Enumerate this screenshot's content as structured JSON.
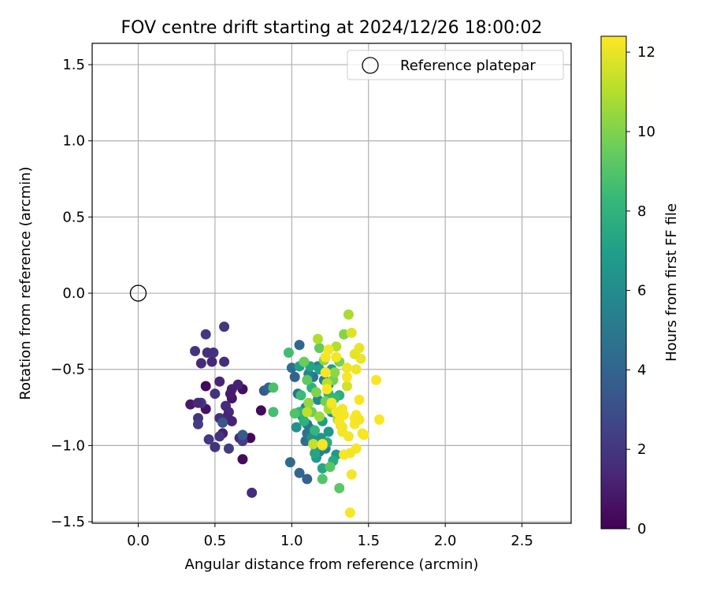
{
  "chart_data": {
    "type": "scatter",
    "title": "FOV centre drift starting at 2024/12/26 18:00:02",
    "xlabel": "Angular distance from reference (arcmin)",
    "ylabel": "Rotation from reference (arcmin)",
    "xlim": [
      -0.3,
      2.82
    ],
    "ylim": [
      -1.51,
      1.64
    ],
    "xticks": [
      0.0,
      0.5,
      1.0,
      1.5,
      2.0,
      2.5
    ],
    "xtick_labels": [
      "0.0",
      "0.5",
      "1.0",
      "1.5",
      "2.0",
      "2.5"
    ],
    "yticks": [
      -1.5,
      -1.0,
      -0.5,
      0.0,
      0.5,
      1.0,
      1.5
    ],
    "ytick_labels": [
      "−1.5",
      "−1.0",
      "−0.5",
      "0.0",
      "0.5",
      "1.0",
      "1.5"
    ],
    "grid": true,
    "legend": {
      "placement": "upper right",
      "entries": [
        "Reference platepar"
      ]
    },
    "reference_point": {
      "x": 0.0,
      "y": 0.0,
      "marker": "hollow circle"
    },
    "colorbar": {
      "label": "Hours from first FF file",
      "colormap": "viridis",
      "range": [
        0,
        12.4
      ],
      "ticks": [
        0,
        2,
        4,
        6,
        8,
        10,
        12
      ],
      "tick_labels": [
        "0",
        "2",
        "4",
        "6",
        "8",
        "10",
        "12"
      ]
    },
    "points_xyc": [
      [
        0.44,
        -0.61,
        0.3
      ],
      [
        0.44,
        -0.76,
        0.6
      ],
      [
        0.34,
        -0.73,
        0.9
      ],
      [
        0.68,
        -1.09,
        0.4
      ],
      [
        0.68,
        -0.63,
        0.5
      ],
      [
        0.73,
        -0.95,
        0.2
      ],
      [
        0.61,
        -0.69,
        0.7
      ],
      [
        0.8,
        -0.77,
        0.3
      ],
      [
        0.56,
        -0.22,
        2.0
      ],
      [
        0.44,
        -0.27,
        2.1
      ],
      [
        0.37,
        -0.38,
        1.9
      ],
      [
        0.49,
        -0.39,
        1.8
      ],
      [
        0.45,
        -0.39,
        1.7
      ],
      [
        0.41,
        -0.46,
        1.5
      ],
      [
        0.48,
        -0.45,
        1.4
      ],
      [
        0.56,
        -0.45,
        1.6
      ],
      [
        0.53,
        -0.58,
        1.3
      ],
      [
        0.65,
        -0.6,
        1.2
      ],
      [
        0.61,
        -0.63,
        1.1
      ],
      [
        0.6,
        -0.66,
        0.9
      ],
      [
        0.5,
        -0.66,
        1.8
      ],
      [
        0.41,
        -0.72,
        2.0
      ],
      [
        0.57,
        -0.74,
        1.6
      ],
      [
        0.39,
        -0.72,
        1.4
      ],
      [
        0.59,
        -0.78,
        1.5
      ],
      [
        0.58,
        -0.81,
        1.3
      ],
      [
        0.53,
        -0.82,
        1.7
      ],
      [
        0.39,
        -0.82,
        1.9
      ],
      [
        0.61,
        -0.84,
        1.2
      ],
      [
        0.39,
        -0.86,
        2.2
      ],
      [
        0.55,
        -0.92,
        1.1
      ],
      [
        0.53,
        -0.94,
        1.9
      ],
      [
        0.46,
        -0.96,
        2.0
      ],
      [
        0.66,
        -0.95,
        1.5
      ],
      [
        0.5,
        -1.01,
        1.8
      ],
      [
        0.59,
        -1.02,
        2.3
      ],
      [
        0.68,
        -0.97,
        2.2
      ],
      [
        0.74,
        -1.31,
        1.6
      ],
      [
        0.55,
        -0.85,
        3.4
      ],
      [
        0.68,
        -0.93,
        3.6
      ],
      [
        0.82,
        -0.64,
        3.5
      ],
      [
        0.85,
        -0.62,
        4.0
      ],
      [
        1.0,
        -0.49,
        4.5
      ],
      [
        1.02,
        -0.55,
        3.9
      ],
      [
        1.05,
        -0.34,
        4.2
      ],
      [
        0.99,
        -1.11,
        4.3
      ],
      [
        1.05,
        -1.18,
        4.1
      ],
      [
        1.1,
        -1.22,
        3.8
      ],
      [
        1.04,
        -0.66,
        4.6
      ],
      [
        1.09,
        -0.97,
        4.4
      ],
      [
        1.1,
        -0.92,
        4.7
      ],
      [
        1.1,
        -0.86,
        5.0
      ],
      [
        1.12,
        -0.89,
        4.9
      ],
      [
        1.15,
        -1.0,
        5.1
      ],
      [
        1.18,
        -1.04,
        5.2
      ],
      [
        1.22,
        -1.02,
        5.3
      ],
      [
        1.14,
        -0.55,
        4.8
      ],
      [
        1.17,
        -0.48,
        5.4
      ],
      [
        1.11,
        -0.53,
        5.6
      ],
      [
        1.21,
        -0.57,
        5.5
      ],
      [
        1.24,
        -0.6,
        5.7
      ],
      [
        1.09,
        -0.75,
        5.8
      ],
      [
        1.17,
        -0.7,
        5.9
      ],
      [
        1.26,
        -0.78,
        6.0
      ],
      [
        1.03,
        -0.88,
        6.2
      ],
      [
        1.07,
        -0.81,
        6.1
      ],
      [
        1.13,
        -0.95,
        6.3
      ],
      [
        1.19,
        -0.95,
        6.4
      ],
      [
        1.24,
        -0.91,
        6.5
      ],
      [
        1.29,
        -1.06,
        6.6
      ],
      [
        1.16,
        -1.08,
        6.7
      ],
      [
        1.2,
        -0.84,
        6.8
      ],
      [
        1.26,
        -0.5,
        6.9
      ],
      [
        1.05,
        -0.48,
        7.0
      ],
      [
        1.18,
        -0.5,
        7.1
      ],
      [
        1.12,
        -0.48,
        7.2
      ],
      [
        1.2,
        -1.15,
        7.4
      ],
      [
        1.27,
        -1.1,
        7.5
      ],
      [
        1.23,
        -0.98,
        7.6
      ],
      [
        1.15,
        -1.05,
        7.3
      ],
      [
        1.31,
        -0.67,
        7.7
      ],
      [
        1.13,
        -0.62,
        7.8
      ],
      [
        1.08,
        -0.84,
        7.9
      ],
      [
        1.24,
        -0.66,
        8.0
      ],
      [
        1.05,
        -0.78,
        8.1
      ],
      [
        1.15,
        -0.9,
        8.2
      ],
      [
        1.28,
        -0.69,
        8.3
      ],
      [
        1.06,
        -0.67,
        8.4
      ],
      [
        0.98,
        -0.39,
        8.6
      ],
      [
        0.88,
        -0.62,
        8.8
      ],
      [
        0.88,
        -0.78,
        8.7
      ],
      [
        1.02,
        -0.79,
        8.9
      ],
      [
        1.2,
        -1.22,
        9.0
      ],
      [
        1.25,
        -1.14,
        9.1
      ],
      [
        1.31,
        -1.28,
        9.2
      ],
      [
        1.1,
        -0.57,
        9.3
      ],
      [
        1.18,
        -0.36,
        9.4
      ],
      [
        1.08,
        -0.45,
        9.5
      ],
      [
        1.13,
        -0.78,
        9.6
      ],
      [
        1.22,
        -0.71,
        9.7
      ],
      [
        1.27,
        -0.57,
        9.8
      ],
      [
        1.31,
        -0.45,
        9.9
      ],
      [
        1.16,
        -0.65,
        10.0
      ],
      [
        1.34,
        -0.27,
        10.1
      ],
      [
        1.21,
        -0.44,
        10.2
      ],
      [
        1.28,
        -0.52,
        10.3
      ],
      [
        1.11,
        -0.72,
        10.4
      ],
      [
        1.18,
        -0.81,
        10.5
      ],
      [
        1.24,
        -0.76,
        10.6
      ],
      [
        1.3,
        -0.83,
        10.7
      ],
      [
        1.37,
        -0.14,
        10.8
      ],
      [
        1.17,
        -0.3,
        10.9
      ],
      [
        1.29,
        -0.35,
        11.0
      ],
      [
        1.23,
        -0.59,
        11.1
      ],
      [
        1.1,
        -0.78,
        11.2
      ],
      [
        1.14,
        -0.99,
        11.3
      ],
      [
        1.2,
        -1.0,
        11.4
      ],
      [
        1.26,
        -0.73,
        11.5
      ],
      [
        1.36,
        -0.61,
        11.6
      ],
      [
        1.32,
        -0.87,
        11.7
      ],
      [
        1.39,
        -0.26,
        11.8
      ],
      [
        1.41,
        -0.4,
        11.9
      ],
      [
        1.44,
        -0.36,
        12.0
      ],
      [
        1.45,
        -0.43,
        12.0
      ],
      [
        1.42,
        -0.5,
        12.1
      ],
      [
        1.36,
        -0.49,
        12.1
      ],
      [
        1.22,
        -0.42,
        12.2
      ],
      [
        1.24,
        -0.37,
        12.2
      ],
      [
        1.29,
        -0.42,
        12.2
      ],
      [
        1.22,
        -0.52,
        12.3
      ],
      [
        1.36,
        -0.55,
        12.3
      ],
      [
        1.23,
        -0.63,
        12.3
      ],
      [
        1.33,
        -0.76,
        12.2
      ],
      [
        1.29,
        -0.78,
        12.2
      ],
      [
        1.26,
        -0.72,
        12.2
      ],
      [
        1.31,
        -0.84,
        12.3
      ],
      [
        1.34,
        -0.8,
        12.3
      ],
      [
        1.41,
        -0.82,
        12.3
      ],
      [
        1.42,
        -0.8,
        12.3
      ],
      [
        1.44,
        -0.7,
        12.3
      ],
      [
        1.41,
        -0.86,
        12.3
      ],
      [
        1.44,
        -0.83,
        12.2
      ],
      [
        1.46,
        -0.92,
        12.3
      ],
      [
        1.47,
        -0.93,
        12.3
      ],
      [
        1.37,
        -0.94,
        12.2
      ],
      [
        1.33,
        -0.88,
        12.2
      ],
      [
        1.33,
        -0.91,
        12.2
      ],
      [
        1.2,
        -0.99,
        12.3
      ],
      [
        1.34,
        -1.06,
        12.3
      ],
      [
        1.42,
        -1.02,
        12.3
      ],
      [
        1.38,
        -1.05,
        12.2
      ],
      [
        1.39,
        -1.19,
        12.2
      ],
      [
        1.38,
        -1.44,
        12.3
      ],
      [
        1.55,
        -0.57,
        12.3
      ],
      [
        1.57,
        -0.83,
        12.3
      ]
    ]
  }
}
